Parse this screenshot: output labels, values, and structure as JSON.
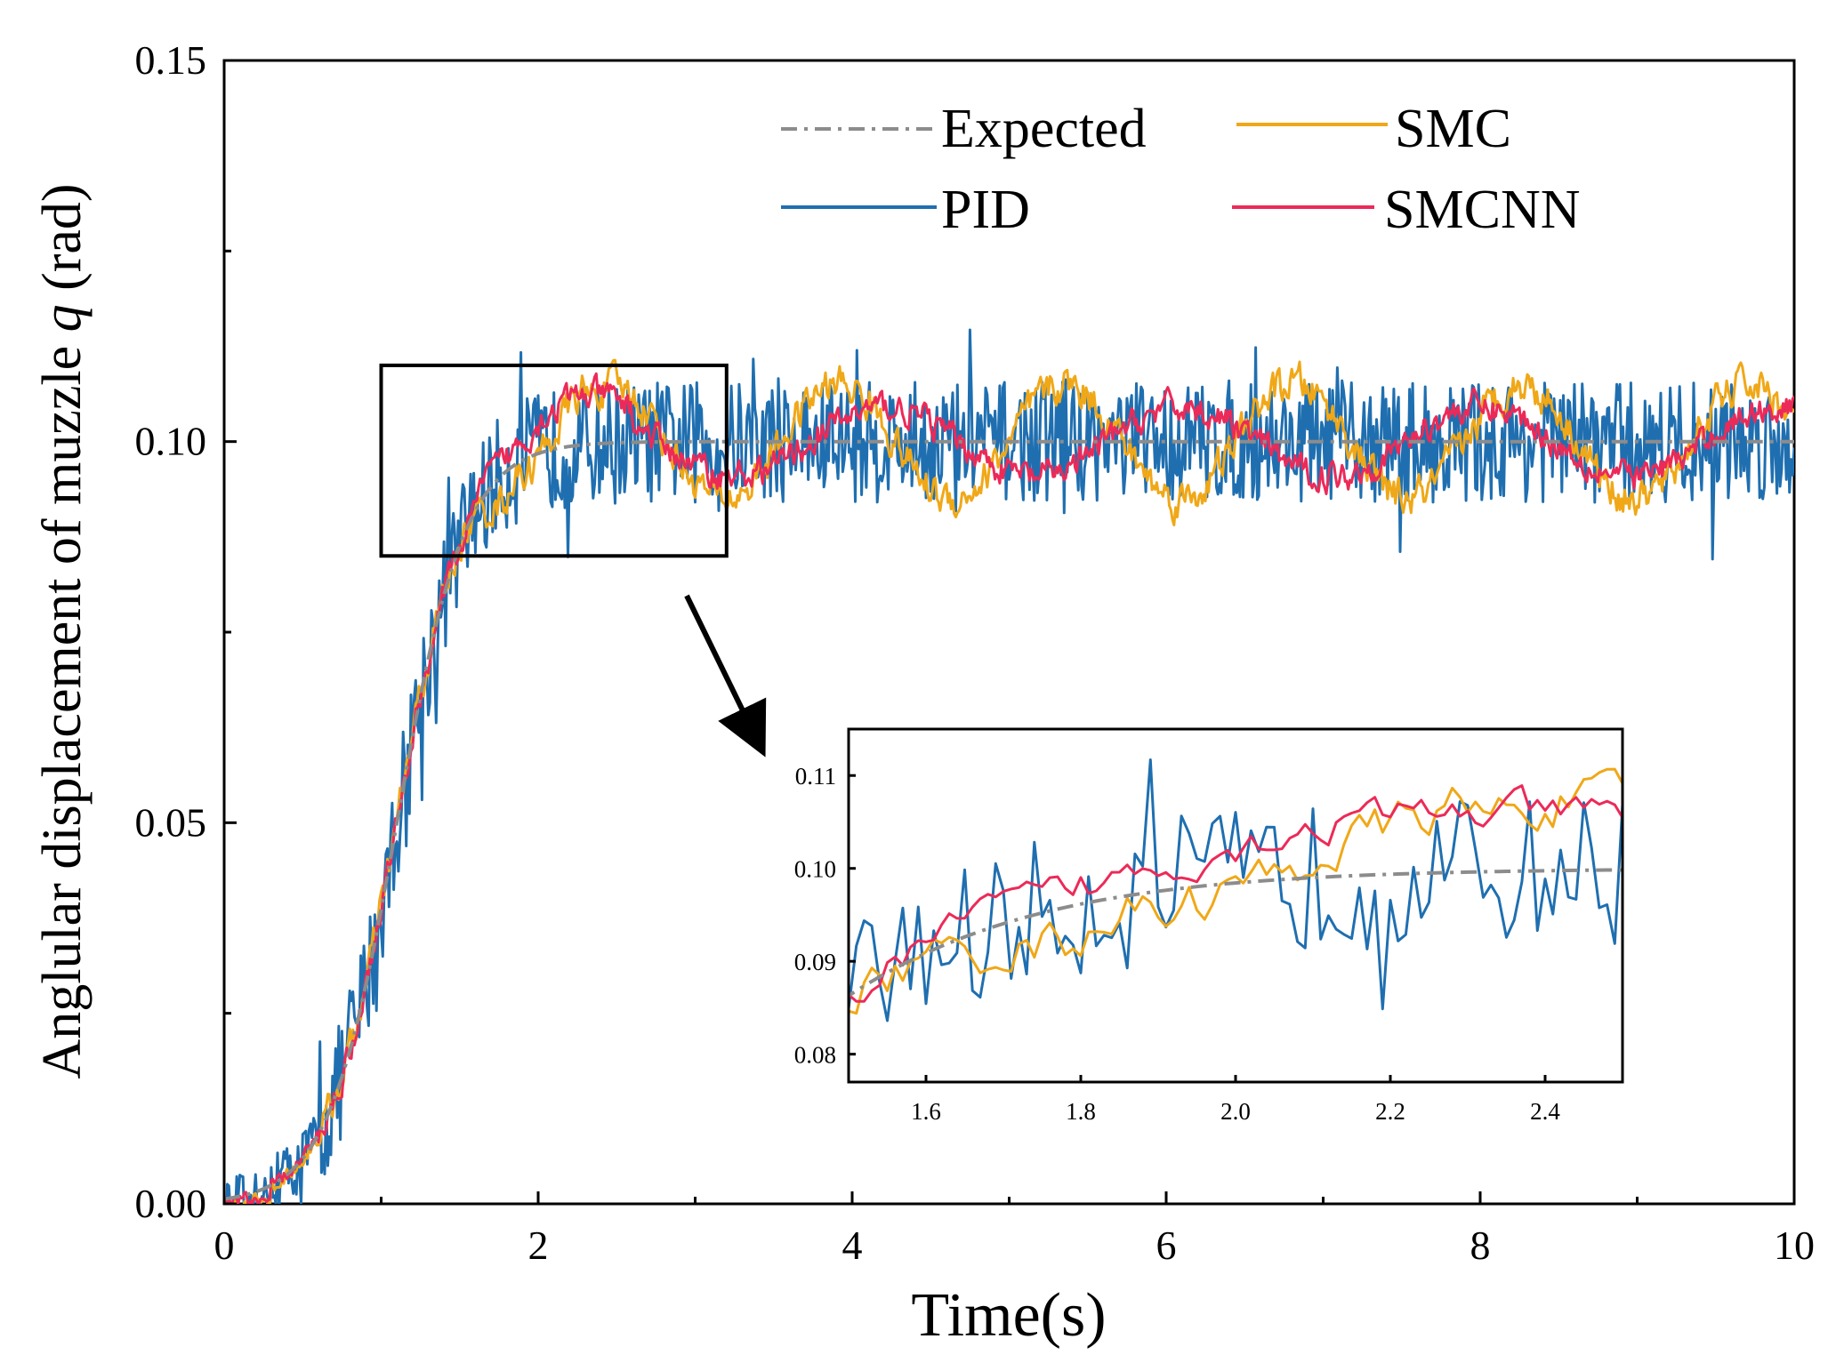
{
  "chart_data": {
    "type": "line",
    "xlabel": "Time(s)",
    "ylabel_prefix": "Anglular displacement of muzzle ",
    "ylabel_symbol": "q",
    "ylabel_suffix": " (rad)",
    "xlim": [
      0,
      10
    ],
    "ylim": [
      0,
      0.15
    ],
    "x_ticks": [
      "0",
      "2",
      "4",
      "6",
      "8",
      "10"
    ],
    "x_tick_values": [
      0,
      2,
      4,
      6,
      8,
      10
    ],
    "y_ticks": [
      "0.00",
      "0.05",
      "0.10",
      "0.15"
    ],
    "y_tick_values": [
      0,
      0.05,
      0.1,
      0.15
    ],
    "grid": false,
    "legend_position": "top-right",
    "setpoint": 0.1,
    "sample_step": 0.01,
    "series": [
      {
        "name": "Expected",
        "color": "#8c8c8c",
        "style": "dash-dot"
      },
      {
        "name": "PID",
        "color": "#1f6fb0",
        "style": "solid",
        "noise_amplitude": 0.008,
        "smoothing": 0
      },
      {
        "name": "SMC",
        "color": "#f0a818",
        "style": "solid",
        "noise_amplitude": 0.0045,
        "smoothing": 1
      },
      {
        "name": "SMCNN",
        "color": "#ec2a58",
        "style": "solid",
        "noise_amplitude": 0.0035,
        "smoothing": 1
      }
    ],
    "zoom_box": {
      "x_range": [
        1.0,
        3.2
      ],
      "y_range": [
        0.085,
        0.11
      ]
    },
    "inset": {
      "xlim": [
        1.5,
        2.5
      ],
      "ylim": [
        0.077,
        0.115
      ],
      "x_ticks": [
        "1.6",
        "1.8",
        "2.0",
        "2.2",
        "2.4"
      ],
      "x_tick_values": [
        1.6,
        1.8,
        2.0,
        2.2,
        2.4
      ],
      "y_ticks": [
        "0.08",
        "0.09",
        "0.10",
        "0.11"
      ],
      "y_tick_values": [
        0.08,
        0.09,
        0.1,
        0.11
      ]
    }
  }
}
